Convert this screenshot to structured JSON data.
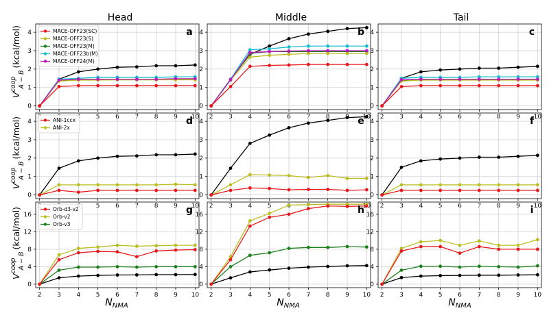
{
  "figure": {
    "column_titles": [
      "Head",
      "Middle",
      "Tail"
    ],
    "ylabel": {
      "main": "V",
      "sup": "coop",
      "sub": "A − B",
      "unit": "(kcal/mol)"
    },
    "xlabel": {
      "main": "N",
      "sub": "NMA"
    },
    "colors": {
      "black": "#000000",
      "red": "#e8191c",
      "olive": "#bcbd22",
      "green": "#1b7f1b",
      "cyan": "#17becf",
      "magenta": "#c018c0"
    }
  },
  "chart_data": [
    {
      "type": "line",
      "panel": "a",
      "column": "Head",
      "row": 0,
      "x": [
        2,
        3,
        4,
        5,
        6,
        7,
        8,
        9,
        10
      ],
      "xlim": [
        1.8,
        10.2
      ],
      "ylim": [
        -0.2,
        4.45
      ],
      "yticks": [
        0,
        1,
        2,
        3,
        4
      ],
      "grid": true,
      "legend": "top-left",
      "series": [
        {
          "name": "MACE-OFF23(SC)",
          "color": "red",
          "values": [
            0,
            1.05,
            1.1,
            1.1,
            1.1,
            1.1,
            1.1,
            1.1,
            1.1
          ]
        },
        {
          "name": "MACE-OFF23(S)",
          "color": "olive",
          "values": [
            0,
            1.35,
            1.4,
            1.4,
            1.42,
            1.42,
            1.42,
            1.42,
            1.42
          ]
        },
        {
          "name": "MACE-OFF23(M)",
          "color": "green",
          "values": [
            0,
            1.38,
            1.42,
            1.42,
            1.42,
            1.42,
            1.42,
            1.45,
            1.45
          ]
        },
        {
          "name": "MACE-OFF23b(M)",
          "color": "cyan",
          "values": [
            0,
            1.45,
            1.5,
            1.55,
            1.55,
            1.55,
            1.55,
            1.58,
            1.58
          ]
        },
        {
          "name": "MACE-OFF24(M)",
          "color": "magenta",
          "values": [
            0,
            1.4,
            1.45,
            1.45,
            1.45,
            1.45,
            1.45,
            1.48,
            1.48
          ]
        },
        {
          "name": "",
          "color": "black",
          "values": [
            0,
            1.45,
            1.85,
            2.0,
            2.1,
            2.12,
            2.18,
            2.18,
            2.22
          ]
        }
      ]
    },
    {
      "type": "line",
      "panel": "b",
      "column": "Middle",
      "row": 0,
      "x": [
        2,
        3,
        4,
        5,
        6,
        7,
        8,
        9,
        10
      ],
      "xlim": [
        1.8,
        10.2
      ],
      "ylim": [
        -0.2,
        4.45
      ],
      "yticks": [
        0,
        1,
        2,
        3,
        4
      ],
      "grid": true,
      "legend": "none",
      "series": [
        {
          "name": "",
          "color": "red",
          "values": [
            0,
            1.05,
            2.15,
            2.2,
            2.22,
            2.25,
            2.25,
            2.25,
            2.25
          ]
        },
        {
          "name": "",
          "color": "olive",
          "values": [
            0,
            1.4,
            2.65,
            2.75,
            2.8,
            2.85,
            2.85,
            2.85,
            2.85
          ]
        },
        {
          "name": "",
          "color": "green",
          "values": [
            0,
            1.4,
            2.85,
            2.95,
            2.95,
            2.95,
            2.95,
            2.95,
            2.95
          ]
        },
        {
          "name": "",
          "color": "cyan",
          "values": [
            0,
            1.45,
            3.05,
            3.1,
            3.2,
            3.25,
            3.25,
            3.25,
            3.25
          ]
        },
        {
          "name": "",
          "color": "magenta",
          "values": [
            0,
            1.42,
            2.9,
            2.95,
            2.98,
            3.0,
            3.0,
            3.0,
            3.0
          ]
        },
        {
          "name": "",
          "color": "black",
          "values": [
            0,
            1.45,
            2.8,
            3.25,
            3.65,
            3.9,
            4.05,
            4.2,
            4.25
          ]
        }
      ]
    },
    {
      "type": "line",
      "panel": "c",
      "column": "Tail",
      "row": 0,
      "x": [
        2,
        3,
        4,
        5,
        6,
        7,
        8,
        9,
        10
      ],
      "xlim": [
        1.8,
        10.2
      ],
      "ylim": [
        -0.2,
        4.45
      ],
      "yticks": [
        0,
        1,
        2,
        3,
        4
      ],
      "grid": true,
      "legend": "none",
      "series": [
        {
          "name": "",
          "color": "red",
          "values": [
            0,
            1.05,
            1.1,
            1.1,
            1.1,
            1.1,
            1.1,
            1.1,
            1.1
          ]
        },
        {
          "name": "",
          "color": "olive",
          "values": [
            0,
            1.35,
            1.4,
            1.4,
            1.4,
            1.4,
            1.4,
            1.4,
            1.4
          ]
        },
        {
          "name": "",
          "color": "green",
          "values": [
            0,
            1.4,
            1.42,
            1.42,
            1.42,
            1.42,
            1.42,
            1.42,
            1.42
          ]
        },
        {
          "name": "",
          "color": "cyan",
          "values": [
            0,
            1.5,
            1.55,
            1.55,
            1.55,
            1.58,
            1.58,
            1.58,
            1.58
          ]
        },
        {
          "name": "",
          "color": "magenta",
          "values": [
            0,
            1.42,
            1.45,
            1.45,
            1.45,
            1.45,
            1.45,
            1.45,
            1.45
          ]
        },
        {
          "name": "",
          "color": "black",
          "values": [
            0,
            1.5,
            1.85,
            1.95,
            2.0,
            2.05,
            2.05,
            2.1,
            2.15
          ]
        }
      ]
    },
    {
      "type": "line",
      "panel": "d",
      "column": "Head",
      "row": 1,
      "x": [
        2,
        3,
        4,
        5,
        6,
        7,
        8,
        9,
        10
      ],
      "xlim": [
        1.8,
        10.2
      ],
      "ylim": [
        -0.2,
        4.45
      ],
      "yticks": [
        0,
        1,
        2,
        3,
        4
      ],
      "grid": true,
      "legend": "top-left",
      "series": [
        {
          "name": "ANI-1ccx",
          "color": "red",
          "values": [
            0,
            0.25,
            0.15,
            0.25,
            0.25,
            0.25,
            0.25,
            0.25,
            0.25
          ]
        },
        {
          "name": "ANI-2x",
          "color": "olive",
          "values": [
            0,
            0.55,
            0.55,
            0.55,
            0.55,
            0.55,
            0.55,
            0.58,
            0.55
          ]
        },
        {
          "name": "",
          "color": "black",
          "values": [
            0,
            1.45,
            1.85,
            2.0,
            2.1,
            2.12,
            2.18,
            2.18,
            2.22
          ]
        }
      ]
    },
    {
      "type": "line",
      "panel": "e",
      "column": "Middle",
      "row": 1,
      "x": [
        2,
        3,
        4,
        5,
        6,
        7,
        8,
        9,
        10
      ],
      "xlim": [
        1.8,
        10.2
      ],
      "ylim": [
        -0.2,
        4.45
      ],
      "yticks": [
        0,
        1,
        2,
        3,
        4
      ],
      "grid": true,
      "legend": "none",
      "series": [
        {
          "name": "",
          "color": "red",
          "values": [
            0,
            0.25,
            0.38,
            0.35,
            0.28,
            0.3,
            0.3,
            0.25,
            0.28
          ]
        },
        {
          "name": "",
          "color": "olive",
          "values": [
            0,
            0.55,
            1.1,
            1.08,
            1.05,
            0.95,
            1.05,
            0.9,
            0.9
          ]
        },
        {
          "name": "",
          "color": "black",
          "values": [
            0,
            1.45,
            2.8,
            3.25,
            3.65,
            3.9,
            4.05,
            4.2,
            4.25
          ]
        }
      ]
    },
    {
      "type": "line",
      "panel": "f",
      "column": "Tail",
      "row": 1,
      "x": [
        2,
        3,
        4,
        5,
        6,
        7,
        8,
        9,
        10
      ],
      "xlim": [
        1.8,
        10.2
      ],
      "ylim": [
        -0.2,
        4.45
      ],
      "yticks": [
        0,
        1,
        2,
        3,
        4
      ],
      "grid": true,
      "legend": "none",
      "series": [
        {
          "name": "",
          "color": "red",
          "values": [
            0,
            0.25,
            0.25,
            0.25,
            0.25,
            0.25,
            0.25,
            0.25,
            0.25
          ]
        },
        {
          "name": "",
          "color": "olive",
          "values": [
            0,
            0.55,
            0.55,
            0.55,
            0.55,
            0.55,
            0.55,
            0.55,
            0.55
          ]
        },
        {
          "name": "",
          "color": "black",
          "values": [
            0,
            1.5,
            1.85,
            1.95,
            2.0,
            2.05,
            2.05,
            2.1,
            2.15
          ]
        }
      ]
    },
    {
      "type": "line",
      "panel": "g",
      "column": "Head",
      "row": 2,
      "x": [
        2,
        3,
        4,
        5,
        6,
        7,
        8,
        9,
        10
      ],
      "xlim": [
        1.8,
        10.2
      ],
      "ylim": [
        -0.8,
        18.8
      ],
      "yticks": [
        0,
        4,
        8,
        12,
        16
      ],
      "grid": true,
      "legend": "top-left",
      "series": [
        {
          "name": "Orb-d3-v2",
          "color": "red",
          "values": [
            0,
            5.6,
            7.2,
            7.5,
            7.4,
            6.3,
            7.6,
            7.8,
            7.9
          ]
        },
        {
          "name": "Orb-v2",
          "color": "olive",
          "values": [
            0,
            6.7,
            8.2,
            8.5,
            8.9,
            8.7,
            8.8,
            8.9,
            8.9
          ]
        },
        {
          "name": "Orb-v3",
          "color": "green",
          "values": [
            0,
            3.2,
            3.9,
            3.9,
            4.0,
            3.9,
            4.0,
            4.0,
            4.0
          ]
        },
        {
          "name": "",
          "color": "black",
          "values": [
            0,
            1.45,
            1.85,
            2.0,
            2.1,
            2.12,
            2.18,
            2.18,
            2.22
          ]
        }
      ]
    },
    {
      "type": "line",
      "panel": "h",
      "column": "Middle",
      "row": 2,
      "x": [
        2,
        3,
        4,
        5,
        6,
        7,
        8,
        9,
        10
      ],
      "xlim": [
        1.8,
        10.2
      ],
      "ylim": [
        -0.8,
        18.8
      ],
      "yticks": [
        0,
        4,
        8,
        12,
        16
      ],
      "grid": true,
      "legend": "none",
      "series": [
        {
          "name": "",
          "color": "red",
          "values": [
            0,
            5.6,
            13.3,
            15.3,
            16.0,
            17.3,
            17.9,
            17.8,
            17.9
          ]
        },
        {
          "name": "",
          "color": "olive",
          "values": [
            0,
            6.3,
            14.5,
            16.2,
            18.1,
            18.2,
            18.3,
            18.3,
            18.3
          ]
        },
        {
          "name": "",
          "color": "green",
          "values": [
            0,
            4.0,
            6.6,
            7.2,
            8.2,
            8.4,
            8.4,
            8.6,
            8.5
          ]
        },
        {
          "name": "",
          "color": "black",
          "values": [
            0,
            1.45,
            2.8,
            3.25,
            3.65,
            3.9,
            4.05,
            4.2,
            4.25
          ]
        }
      ]
    },
    {
      "type": "line",
      "panel": "i",
      "column": "Tail",
      "row": 2,
      "x": [
        2,
        3,
        4,
        5,
        6,
        7,
        8,
        9,
        10
      ],
      "xlim": [
        1.8,
        10.2
      ],
      "ylim": [
        -0.8,
        18.8
      ],
      "yticks": [
        0,
        4,
        8,
        12,
        16
      ],
      "grid": true,
      "legend": "none",
      "series": [
        {
          "name": "",
          "color": "red",
          "values": [
            0,
            7.6,
            8.6,
            8.6,
            7.1,
            8.6,
            8.0,
            8.0,
            8.0
          ]
        },
        {
          "name": "",
          "color": "olive",
          "values": [
            0,
            8.2,
            9.7,
            10.0,
            8.9,
            9.9,
            8.9,
            8.9,
            10.2
          ]
        },
        {
          "name": "",
          "color": "green",
          "values": [
            0,
            3.2,
            4.1,
            4.1,
            3.9,
            4.1,
            4.0,
            3.9,
            4.2
          ]
        },
        {
          "name": "",
          "color": "black",
          "values": [
            0,
            1.5,
            1.85,
            1.95,
            2.0,
            2.05,
            2.05,
            2.1,
            2.15
          ]
        }
      ]
    }
  ]
}
